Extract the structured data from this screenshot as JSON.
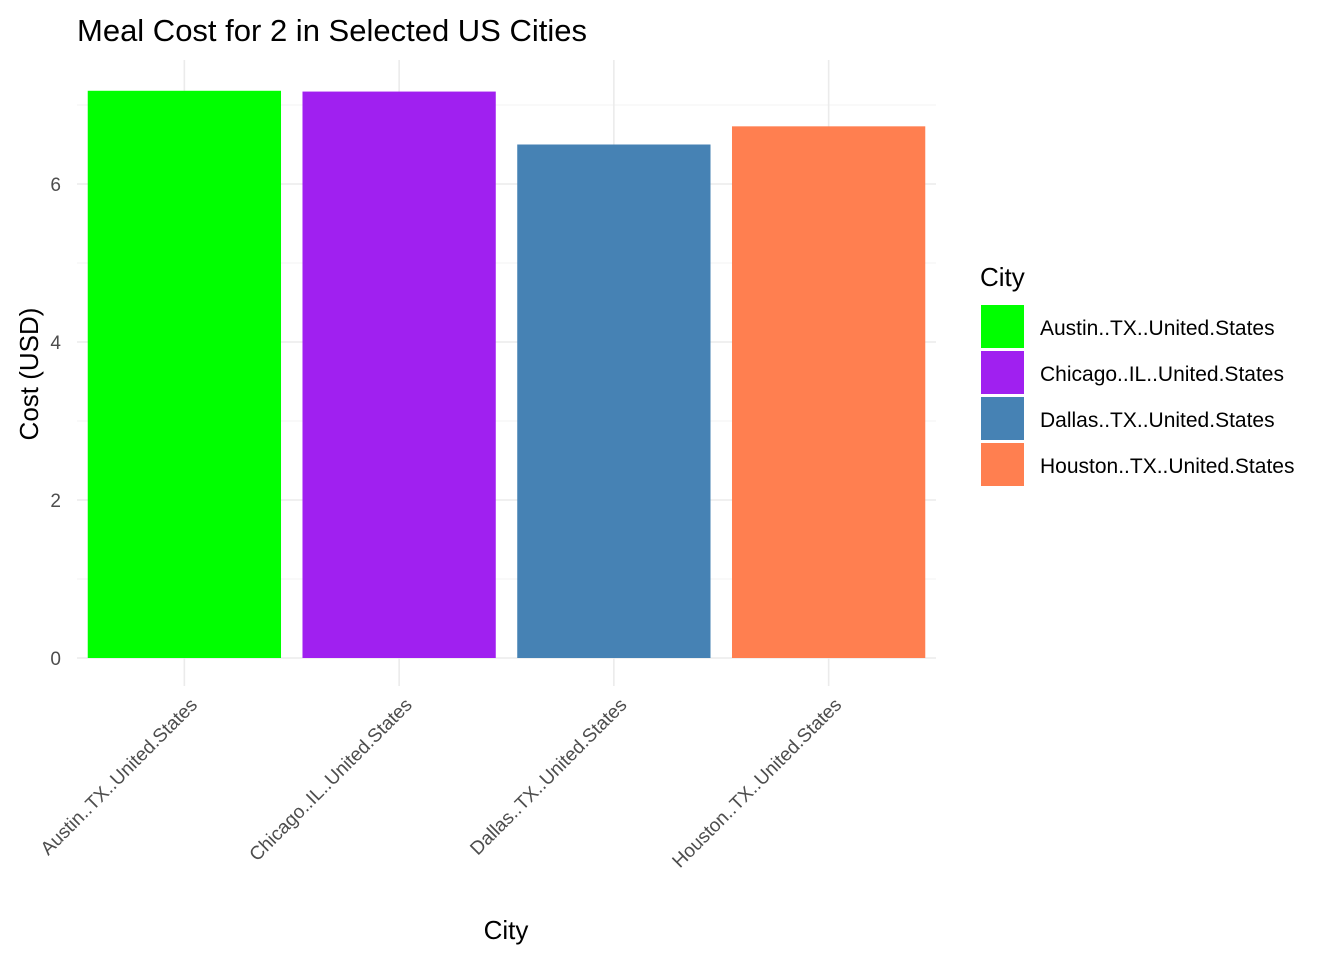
{
  "chart_data": {
    "type": "bar",
    "title": "Meal Cost for 2 in Selected US Cities",
    "xlabel": "City",
    "ylabel": "Cost (USD)",
    "ylim": [
      0,
      7.2
    ],
    "yticks": [
      0,
      2,
      4,
      6
    ],
    "grid": true,
    "legend": {
      "title": "City",
      "position": "right"
    },
    "categories": [
      "Austin..TX..United.States",
      "Chicago..IL..United.States",
      "Dallas..TX..United.States",
      "Houston..TX..United.States"
    ],
    "values": [
      7.18,
      7.17,
      6.5,
      6.73
    ],
    "colors": [
      "#00ff00",
      "#a020f0",
      "#4682b4",
      "#ff7f50"
    ]
  }
}
